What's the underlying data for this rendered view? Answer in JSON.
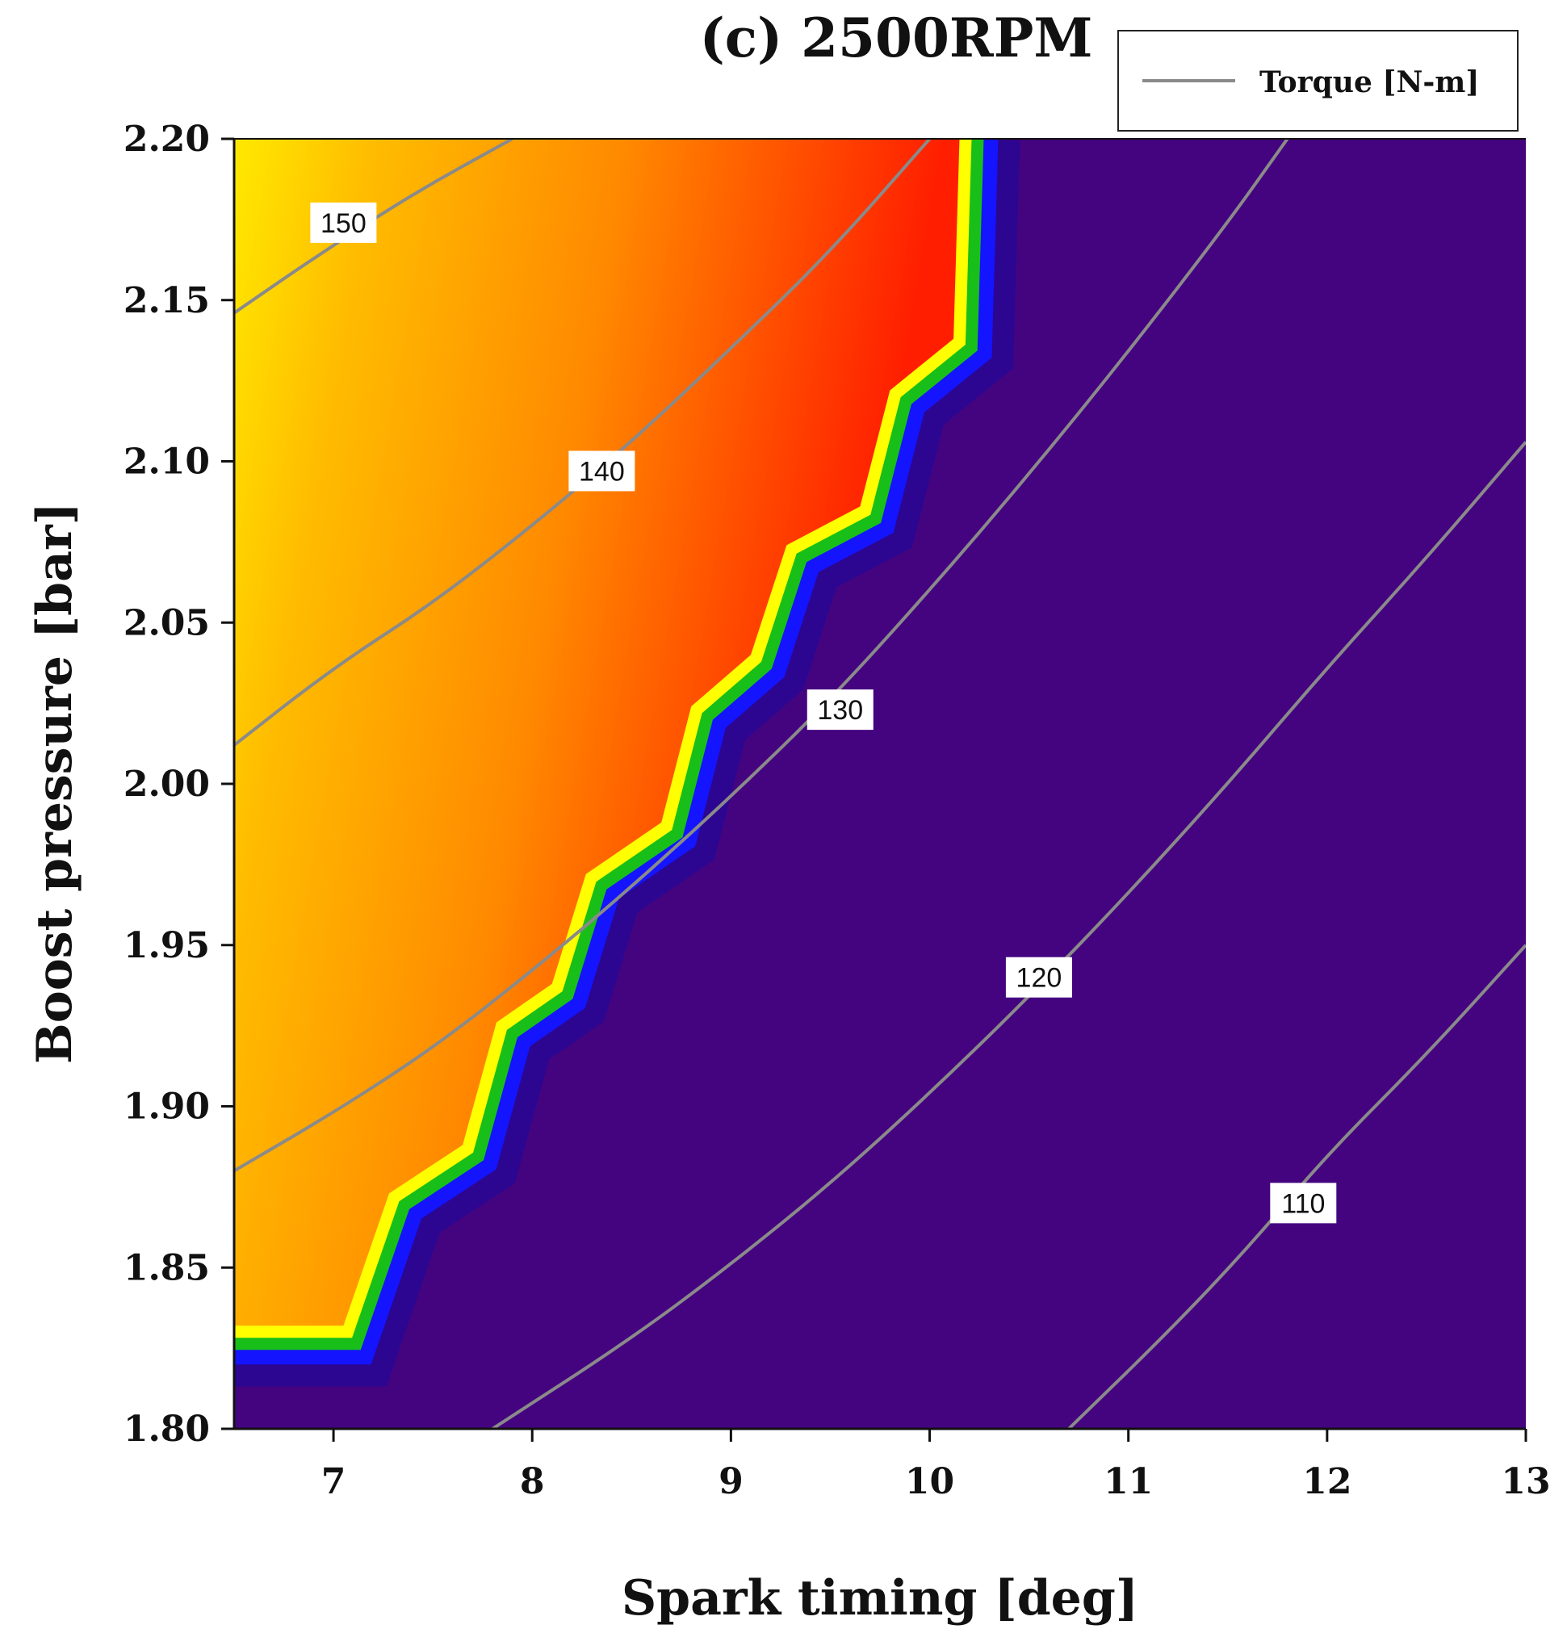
{
  "chart_data": {
    "type": "heatmap",
    "title": "(c) 2500RPM",
    "xlabel": "Spark timing [deg]",
    "ylabel": "Boost pressure [bar]",
    "xlim": [
      6.5,
      13
    ],
    "ylim": [
      1.8,
      2.2
    ],
    "x_ticks": [
      "7",
      "8",
      "9",
      "10",
      "11",
      "12",
      "13"
    ],
    "x_tick_values": [
      7,
      8,
      9,
      10,
      11,
      12,
      13
    ],
    "y_ticks": [
      "1.80",
      "1.85",
      "1.90",
      "1.95",
      "2.00",
      "2.05",
      "2.10",
      "2.15",
      "2.20"
    ],
    "y_tick_values": [
      1.8,
      1.85,
      1.9,
      1.95,
      2.0,
      2.05,
      2.1,
      2.15,
      2.2
    ],
    "legend": {
      "label": "Torque [N-m]",
      "position": "top-right"
    },
    "colors": {
      "feasible_low": "#ff1e00",
      "feasible_high": "#ffee00",
      "knock_region": "#440480",
      "band_green": "#19bf19",
      "band_blue": "#1414ff",
      "contour": "#8a8a8a"
    },
    "feasible_boundary": [
      [
        6.5,
        1.832
      ],
      [
        7.05,
        1.832
      ],
      [
        7.28,
        1.873
      ],
      [
        7.65,
        1.888
      ],
      [
        7.82,
        1.926
      ],
      [
        8.1,
        1.938
      ],
      [
        8.27,
        1.972
      ],
      [
        8.65,
        1.988
      ],
      [
        8.8,
        2.024
      ],
      [
        9.1,
        2.04
      ],
      [
        9.28,
        2.074
      ],
      [
        9.65,
        2.086
      ],
      [
        9.8,
        2.122
      ],
      [
        10.12,
        2.138
      ],
      [
        10.15,
        2.2
      ]
    ],
    "contours": [
      {
        "label": "150",
        "points": [
          [
            6.5,
            2.146
          ],
          [
            6.9,
            2.163
          ],
          [
            7.4,
            2.183
          ],
          [
            7.9,
            2.2
          ]
        ],
        "label_at": [
          7.05,
          2.174
        ]
      },
      {
        "label": "140",
        "points": [
          [
            6.5,
            2.012
          ],
          [
            7.0,
            2.036
          ],
          [
            7.5,
            2.056
          ],
          [
            8.0,
            2.08
          ],
          [
            8.5,
            2.106
          ],
          [
            9.0,
            2.135
          ],
          [
            9.5,
            2.165
          ],
          [
            10.0,
            2.2
          ]
        ],
        "label_at": [
          8.35,
          2.097
        ]
      },
      {
        "label": "130",
        "points": [
          [
            6.5,
            1.88
          ],
          [
            7.0,
            1.898
          ],
          [
            7.5,
            1.918
          ],
          [
            8.0,
            1.942
          ],
          [
            8.5,
            1.968
          ],
          [
            9.0,
            1.996
          ],
          [
            9.5,
            2.026
          ],
          [
            10.0,
            2.06
          ],
          [
            10.5,
            2.096
          ],
          [
            11.0,
            2.134
          ],
          [
            11.5,
            2.174
          ],
          [
            11.8,
            2.2
          ]
        ],
        "label_at": [
          9.55,
          2.023
        ]
      },
      {
        "label": "120",
        "points": [
          [
            7.8,
            1.8
          ],
          [
            8.5,
            1.828
          ],
          [
            9.0,
            1.851
          ],
          [
            9.5,
            1.876
          ],
          [
            10.0,
            1.904
          ],
          [
            10.5,
            1.934
          ],
          [
            11.0,
            1.966
          ],
          [
            11.5,
            2.0
          ],
          [
            12.0,
            2.036
          ],
          [
            12.5,
            2.07
          ],
          [
            13.0,
            2.106
          ]
        ],
        "label_at": [
          10.55,
          1.94
        ]
      },
      {
        "label": "110",
        "points": [
          [
            10.7,
            1.8
          ],
          [
            11.2,
            1.83
          ],
          [
            11.6,
            1.856
          ],
          [
            12.0,
            1.885
          ],
          [
            12.5,
            1.916
          ],
          [
            13.0,
            1.95
          ]
        ],
        "label_at": [
          11.88,
          1.87
        ]
      }
    ]
  }
}
